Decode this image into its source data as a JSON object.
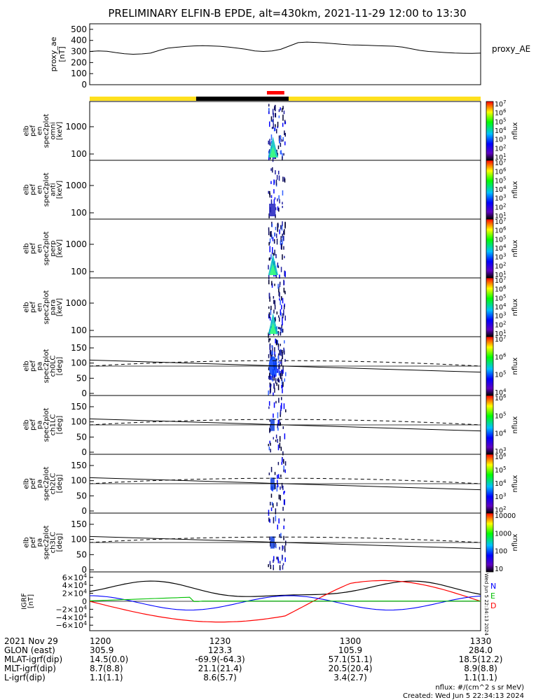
{
  "title": "PRELIMINARY ELFIN-B EPDE, alt=430km, 2021-11-29 12:00 to 13:30",
  "proxy_panel": {
    "ylabel": [
      "proxy_ae",
      "[nT]"
    ],
    "yticks": [
      "500",
      "400",
      "300",
      "200",
      "100",
      "0"
    ],
    "legend": "proxy_AE",
    "ymax": 550,
    "t": [
      0,
      2,
      4,
      6,
      8,
      10,
      12,
      14,
      16,
      18,
      20,
      22,
      24,
      26,
      28,
      30,
      32,
      34,
      36,
      38,
      40,
      42,
      44,
      46,
      48,
      50,
      52,
      54,
      56,
      58,
      60,
      62,
      64,
      66,
      68,
      70,
      72,
      74,
      76,
      78,
      80,
      82,
      84,
      86,
      88,
      90
    ],
    "values": [
      300,
      305,
      302,
      290,
      280,
      275,
      278,
      285,
      310,
      330,
      338,
      345,
      350,
      352,
      350,
      347,
      340,
      330,
      320,
      305,
      300,
      305,
      320,
      350,
      380,
      385,
      382,
      378,
      372,
      365,
      360,
      358,
      355,
      352,
      350,
      348,
      340,
      325,
      310,
      300,
      295,
      290,
      286,
      284,
      283,
      285
    ]
  },
  "ephemeris_bar": {
    "segments": [
      {
        "from": 0,
        "to": 24.5,
        "color": "#ffe01e"
      },
      {
        "from": 24.5,
        "to": 45.8,
        "color": "#000000"
      },
      {
        "from": 45.8,
        "to": 90,
        "color": "#ffe01e"
      }
    ],
    "science_zone": {
      "from": 40.8,
      "to": 44.8,
      "color": "#ff0000"
    }
  },
  "energy_panels": [
    {
      "ylabel": [
        "elb",
        "pef",
        "en",
        "spec2plot",
        "omni",
        "[keV]"
      ],
      "cbar_ticks": [
        "10^7",
        "10^6",
        "10^5",
        "10^4",
        "10^3",
        "10^2",
        "10^1"
      ]
    },
    {
      "ylabel": [
        "elb",
        "pef",
        "en",
        "spec2plot",
        "anti",
        "[keV]"
      ],
      "cbar_ticks": [
        "10^7",
        "10^6",
        "10^5",
        "10^4",
        "10^3",
        "10^2",
        "10^1"
      ]
    },
    {
      "ylabel": [
        "elb",
        "pef",
        "en",
        "spec2plot",
        "perp",
        "[keV]"
      ],
      "cbar_ticks": [
        "10^7",
        "10^6",
        "10^5",
        "10^4",
        "10^3",
        "10^2",
        "10^1"
      ]
    },
    {
      "ylabel": [
        "elb",
        "pef",
        "en",
        "spec2plot",
        "para",
        "[keV]"
      ],
      "cbar_ticks": [
        "10^7",
        "10^6",
        "10^5",
        "10^4",
        "10^3",
        "10^2",
        "10^1"
      ]
    }
  ],
  "energy_yticks": [
    "1000",
    "100"
  ],
  "pitch_panels": [
    {
      "ylabel": [
        "elb",
        "pef",
        "pa",
        "spec2plot",
        "ch0LC",
        "[deg]"
      ],
      "cbar_ticks": [
        "10^7",
        "10^6",
        "10^5",
        "10^4"
      ]
    },
    {
      "ylabel": [
        "elb",
        "pef",
        "pa",
        "spec2plot",
        "ch1LC",
        "[deg]"
      ],
      "cbar_ticks": [
        "10^6",
        "10^5",
        "10^4",
        "10^3"
      ]
    },
    {
      "ylabel": [
        "elb",
        "pef",
        "pa",
        "spec2plot",
        "ch2LC",
        "[deg]"
      ],
      "cbar_ticks": [
        "10^6",
        "10^5",
        "10^4",
        "10^3",
        "10^2"
      ]
    },
    {
      "ylabel": [
        "elb",
        "pef",
        "pa",
        "spec2plot",
        "ch3LC",
        "[deg]"
      ],
      "cbar_ticks": [
        "10000",
        "1000",
        "100",
        "10"
      ]
    }
  ],
  "pitch_yticks": [
    "150",
    "100",
    "50",
    "0"
  ],
  "loss_cone": {
    "solid_start": 110,
    "solid_end": 70,
    "dashed_start": 90,
    "dashed_mid": 112,
    "dashed_end": 90,
    "ref": 90
  },
  "cbar_label": "nflux",
  "igrf_panel": {
    "ylabel": [
      "IGRF",
      "[nT]"
    ],
    "yticks": [
      "6×10^4",
      "4×10^4",
      "2×10^4",
      "0",
      "−2×10^4",
      "−4×10^4",
      "−6×10^4"
    ],
    "components": [
      {
        "label": "N",
        "color": "#0000ff"
      },
      {
        "label": "E",
        "color": "#00c000"
      },
      {
        "label": "D",
        "color": "#ff0000"
      }
    ]
  },
  "orbit_table": {
    "rows": [
      {
        "label": "2021 Nov 29",
        "values": [
          "1200",
          "1230",
          "1300",
          "1330"
        ]
      },
      {
        "label": "GLON (east)",
        "values": [
          "305.9",
          "123.3",
          "105.9",
          "284.0"
        ]
      },
      {
        "label": "MLAT-igrf(dip)",
        "values": [
          "14.5(0.0)",
          "-69.9(-64.3)",
          "57.1(51.1)",
          "18.5(12.2)"
        ]
      },
      {
        "label": "MLT-igrf(dip)",
        "values": [
          "8.7(8.8)",
          "21.1(21.4)",
          "20.5(20.4)",
          "8.9(8.8)"
        ]
      },
      {
        "label": "L-igrf(dip)",
        "values": [
          "1.1(1.1)",
          "8.6(5.7)",
          "3.4(2.7)",
          "1.1(1.1)"
        ]
      }
    ]
  },
  "footer": {
    "units": "nflux: #/(cm^2 s sr MeV)",
    "created": "Created: Wed Jun  5 22:34:13 2024",
    "stamp": "Wed Jun  5 22:34:13 2024"
  }
}
